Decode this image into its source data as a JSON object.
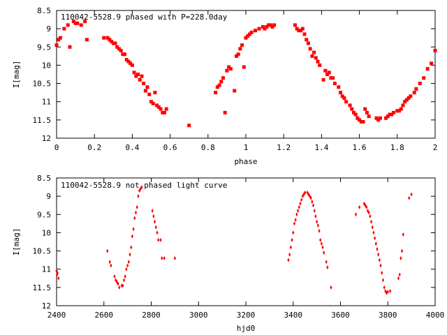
{
  "chart_data": [
    {
      "type": "scatter",
      "title": "110042-5528.9 phased with P=228.0day",
      "xlabel": "phase",
      "ylabel": "I[mag]",
      "xlim": [
        0,
        2
      ],
      "ylim": [
        8.5,
        12
      ],
      "y_inverted": true,
      "grid": false,
      "xticks": [
        "0",
        "0.2",
        "0.4",
        "0.6",
        "0.8",
        "1",
        "1.2",
        "1.4",
        "1.6",
        "1.8",
        "2"
      ],
      "yticks": [
        "8.5",
        "9",
        "9.5",
        "10",
        "10.5",
        "11",
        "11.5",
        "12"
      ],
      "color": "#ff0000",
      "series": [
        {
          "x": [
            0.0,
            0.01,
            0.02,
            0.04,
            0.06,
            0.07,
            0.09,
            0.1,
            0.11,
            0.13,
            0.15,
            0.16,
            0.25,
            0.27,
            0.28,
            0.29,
            0.3,
            0.31,
            0.32,
            0.33,
            0.34,
            0.35,
            0.36,
            0.37,
            0.38,
            0.39,
            0.4,
            0.41,
            0.42,
            0.43,
            0.44,
            0.45,
            0.46,
            0.47,
            0.48,
            0.49,
            0.5,
            0.51,
            0.52,
            0.53,
            0.54,
            0.55,
            0.56,
            0.57,
            0.58,
            0.7,
            0.84,
            0.85,
            0.86,
            0.87,
            0.88,
            0.89,
            0.9,
            0.91,
            0.92,
            0.94,
            0.95,
            0.96,
            0.97,
            0.98,
            0.99,
            1.0,
            1.01,
            1.02,
            1.03,
            1.05,
            1.07,
            1.09,
            1.1,
            1.11,
            1.12,
            1.13,
            1.14,
            1.15,
            1.26,
            1.27,
            1.28,
            1.29,
            1.3,
            1.31,
            1.32,
            1.33,
            1.34,
            1.35,
            1.36,
            1.37,
            1.38,
            1.39,
            1.41,
            1.42,
            1.43,
            1.44,
            1.45,
            1.46,
            1.47,
            1.49,
            1.5,
            1.51,
            1.52,
            1.53,
            1.55,
            1.56,
            1.57,
            1.58,
            1.59,
            1.6,
            1.61,
            1.62,
            1.63,
            1.64,
            1.65,
            1.69,
            1.7,
            1.71,
            1.74,
            1.75,
            1.76,
            1.77,
            1.78,
            1.8,
            1.81,
            1.82,
            1.83,
            1.84,
            1.85,
            1.86,
            1.87,
            1.89,
            1.9,
            1.92,
            1.94,
            1.96,
            1.98,
            2.0
          ],
          "y": [
            9.45,
            9.3,
            9.25,
            9.0,
            8.9,
            9.5,
            8.8,
            8.85,
            8.85,
            8.9,
            8.8,
            9.3,
            9.25,
            9.25,
            9.3,
            9.35,
            9.4,
            9.4,
            9.5,
            9.55,
            9.6,
            9.7,
            9.7,
            9.85,
            9.9,
            9.95,
            10.0,
            10.2,
            10.3,
            10.25,
            10.4,
            10.3,
            10.5,
            10.7,
            10.6,
            10.8,
            11.0,
            11.05,
            10.75,
            11.1,
            11.15,
            11.2,
            11.3,
            11.3,
            11.2,
            11.65,
            10.75,
            10.6,
            10.55,
            10.45,
            10.35,
            11.3,
            10.15,
            10.05,
            10.1,
            10.7,
            9.75,
            9.7,
            9.55,
            9.45,
            10.05,
            9.25,
            9.2,
            9.15,
            9.1,
            9.05,
            9.0,
            8.95,
            9.0,
            8.95,
            8.9,
            8.9,
            8.95,
            8.9,
            8.9,
            9.0,
            9.05,
            9.05,
            9.0,
            9.15,
            9.3,
            9.4,
            9.55,
            9.75,
            9.65,
            9.8,
            9.9,
            10.0,
            10.4,
            10.15,
            10.25,
            10.2,
            10.35,
            10.35,
            10.5,
            10.6,
            10.75,
            10.85,
            10.9,
            11.0,
            11.1,
            11.2,
            11.3,
            11.35,
            11.45,
            11.5,
            11.55,
            11.55,
            11.2,
            11.3,
            11.4,
            11.45,
            11.5,
            11.45,
            11.45,
            11.4,
            11.35,
            11.35,
            11.3,
            11.25,
            11.25,
            11.2,
            11.1,
            11.0,
            10.95,
            10.9,
            10.85,
            10.75,
            10.65,
            10.5,
            10.35,
            10.1,
            9.95,
            9.6
          ]
        }
      ]
    },
    {
      "type": "scatter",
      "title": "110042-5528.9 not phased light curve",
      "xlabel": "hjd0",
      "ylabel": "I[mag]",
      "xlim": [
        2400,
        4000
      ],
      "ylim": [
        8.5,
        12
      ],
      "y_inverted": true,
      "grid": false,
      "xticks": [
        "2400",
        "2600",
        "2800",
        "3000",
        "3200",
        "3400",
        "3600",
        "3800",
        "4000"
      ],
      "yticks": [
        "8.5",
        "9",
        "9.5",
        "10",
        "10.5",
        "11",
        "11.5",
        "12"
      ],
      "color": "#ff0000",
      "series": [
        {
          "x": [
            2400,
            2402,
            2404,
            2408,
            2615,
            2625,
            2630,
            2645,
            2650,
            2655,
            2660,
            2665,
            2675,
            2680,
            2685,
            2690,
            2695,
            2700,
            2705,
            2710,
            2715,
            2720,
            2725,
            2730,
            2735,
            2740,
            2745,
            2750,
            2755,
            2760,
            2805,
            2810,
            2815,
            2820,
            2825,
            2830,
            2840,
            2845,
            2855,
            2900,
            3380,
            3385,
            3390,
            3395,
            3400,
            3405,
            3410,
            3415,
            3420,
            3425,
            3430,
            3435,
            3440,
            3445,
            3450,
            3460,
            3465,
            3470,
            3475,
            3480,
            3485,
            3490,
            3495,
            3500,
            3505,
            3510,
            3515,
            3520,
            3525,
            3530,
            3540,
            3545,
            3560,
            3665,
            3680,
            3700,
            3705,
            3710,
            3715,
            3720,
            3725,
            3730,
            3735,
            3740,
            3745,
            3750,
            3755,
            3760,
            3765,
            3770,
            3775,
            3780,
            3785,
            3790,
            3795,
            3800,
            3810,
            3845,
            3850,
            3855,
            3860,
            3865,
            3890,
            3900
          ],
          "y": [
            11.05,
            11.15,
            11.1,
            11.25,
            10.5,
            10.8,
            10.9,
            11.2,
            11.3,
            11.35,
            11.4,
            11.5,
            11.45,
            11.45,
            11.3,
            11.2,
            11.0,
            10.9,
            10.8,
            10.6,
            10.4,
            10.1,
            9.9,
            9.6,
            9.45,
            9.3,
            9.0,
            8.85,
            8.8,
            8.75,
            9.4,
            9.55,
            9.7,
            9.85,
            10.0,
            10.2,
            10.2,
            10.7,
            10.7,
            10.7,
            10.75,
            10.6,
            10.4,
            10.2,
            10.0,
            9.75,
            9.65,
            9.5,
            9.4,
            9.3,
            9.2,
            9.1,
            9.0,
            8.95,
            8.9,
            8.9,
            8.95,
            9.0,
            9.05,
            9.15,
            9.25,
            9.4,
            9.55,
            9.7,
            9.8,
            9.95,
            10.2,
            10.3,
            10.4,
            10.55,
            10.8,
            10.95,
            11.5,
            9.5,
            9.3,
            9.2,
            9.25,
            9.3,
            9.4,
            9.45,
            9.55,
            9.7,
            9.85,
            10.0,
            10.15,
            10.3,
            10.45,
            10.6,
            10.75,
            10.9,
            11.1,
            11.3,
            11.5,
            11.6,
            11.65,
            11.62,
            11.6,
            11.25,
            11.15,
            10.7,
            10.5,
            10.05,
            9.05,
            8.95
          ]
        }
      ]
    }
  ]
}
